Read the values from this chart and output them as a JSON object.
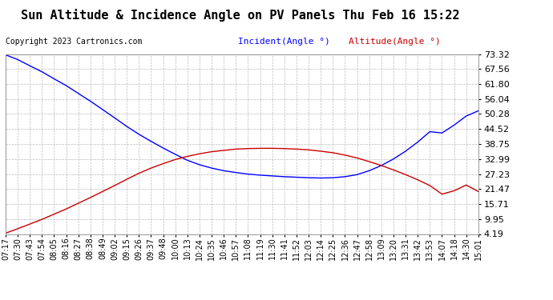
{
  "title": "Sun Altitude & Incidence Angle on PV Panels Thu Feb 16 15:22",
  "copyright": "Copyright 2023 Cartronics.com",
  "legend_incident": "Incident(Angle °)",
  "legend_altitude": "Altitude(Angle °)",
  "incident_color": "#0000ff",
  "altitude_color": "#cc0000",
  "background_color": "#ffffff",
  "grid_color": "#bbbbbb",
  "ylim": [
    4.19,
    73.32
  ],
  "yticks": [
    4.19,
    9.95,
    15.71,
    21.47,
    27.23,
    32.99,
    38.75,
    44.52,
    50.28,
    56.04,
    61.8,
    67.56,
    73.32
  ],
  "x_labels": [
    "07:17",
    "07:30",
    "07:43",
    "07:54",
    "08:05",
    "08:16",
    "08:27",
    "08:38",
    "08:49",
    "09:02",
    "09:15",
    "09:26",
    "09:37",
    "09:48",
    "10:00",
    "10:13",
    "10:24",
    "10:35",
    "10:46",
    "10:57",
    "11:08",
    "11:19",
    "11:30",
    "11:41",
    "11:52",
    "12:03",
    "12:14",
    "12:25",
    "12:36",
    "12:47",
    "12:58",
    "13:09",
    "13:20",
    "13:31",
    "13:42",
    "13:53",
    "14:07",
    "14:18",
    "14:30",
    "15:01"
  ],
  "incident_values": [
    73.0,
    71.2,
    68.8,
    66.5,
    63.8,
    61.2,
    58.2,
    55.2,
    52.0,
    48.8,
    45.5,
    42.5,
    39.8,
    37.2,
    34.8,
    32.5,
    30.8,
    29.5,
    28.5,
    27.8,
    27.2,
    26.8,
    26.5,
    26.2,
    26.0,
    25.8,
    25.7,
    25.8,
    26.2,
    27.0,
    28.5,
    30.5,
    33.0,
    36.0,
    39.5,
    43.5,
    43.0,
    46.0,
    49.5,
    51.5
  ],
  "altitude_values": [
    4.5,
    6.2,
    8.0,
    9.8,
    11.8,
    13.8,
    16.0,
    18.2,
    20.5,
    22.8,
    25.2,
    27.5,
    29.5,
    31.2,
    32.8,
    34.0,
    35.0,
    35.8,
    36.3,
    36.8,
    37.0,
    37.1,
    37.1,
    37.0,
    36.8,
    36.5,
    36.0,
    35.4,
    34.5,
    33.4,
    32.0,
    30.5,
    28.8,
    27.0,
    25.0,
    22.8,
    19.5,
    20.8,
    23.0,
    20.5
  ],
  "title_fontsize": 11,
  "legend_fontsize": 8,
  "tick_fontsize": 7,
  "copyright_fontsize": 7,
  "yticklabel_fontsize": 8
}
